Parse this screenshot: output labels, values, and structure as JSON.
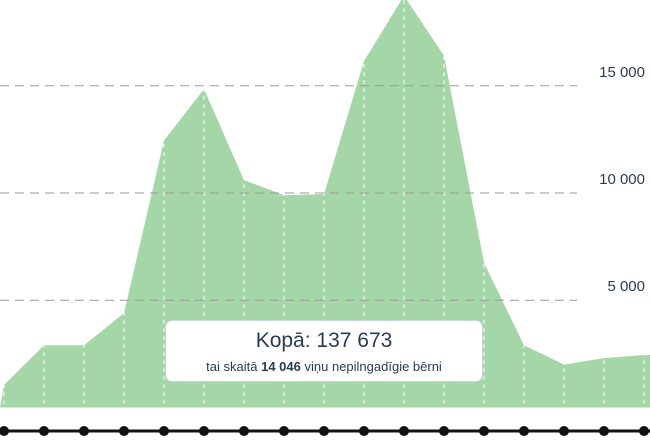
{
  "chart_data": {
    "type": "area",
    "categories": [
      null,
      null,
      null,
      null,
      null,
      null,
      null,
      null,
      null,
      null,
      null,
      null,
      null,
      null,
      null,
      null,
      null
    ],
    "values": [
      1050,
      2900,
      2900,
      4400,
      12450,
      14850,
      10600,
      9900,
      9950,
      16150,
      19200,
      16400,
      6750,
      2900,
      2000,
      2300,
      2450
    ],
    "color": "#a4d6a7",
    "ylim": [
      0,
      19000
    ],
    "yticks": [
      {
        "value": 5000,
        "label": "5 000"
      },
      {
        "value": 10000,
        "label": "10 000"
      },
      {
        "value": 15000,
        "label": "15 000"
      }
    ],
    "grid": true,
    "annotation": {
      "title": "Kopā: 137 673",
      "text_before": "tai skaitā",
      "highlight": "14 046",
      "text_after": "viņu nepilngadīgie bērni"
    }
  }
}
